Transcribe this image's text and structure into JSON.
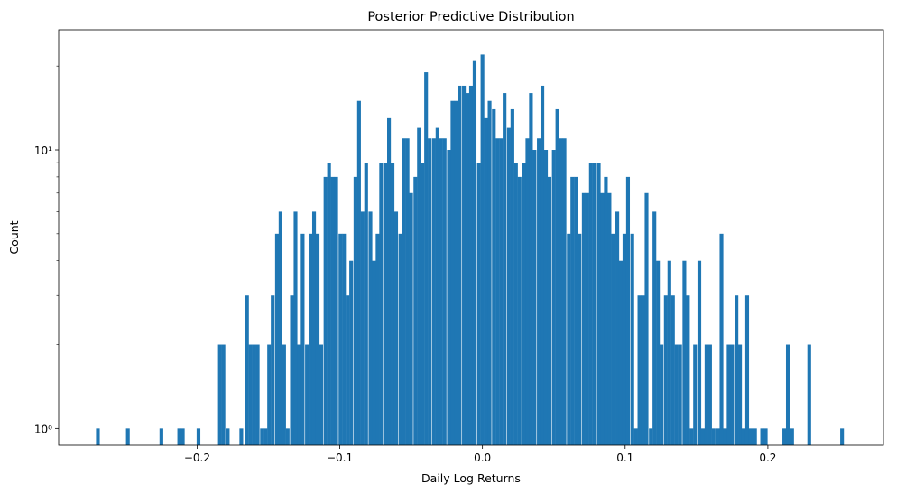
{
  "chart_data": {
    "type": "bar",
    "title": "Posterior Predictive Distribution",
    "xlabel": "Daily Log Returns",
    "ylabel": "Count",
    "yscale": "log",
    "xlim": [
      -0.297,
      0.281
    ],
    "ylim": [
      0.87,
      27
    ],
    "grid": false,
    "legend": "none",
    "bar_color": "#1f77b4",
    "x_ticks": [
      {
        "value": -0.2,
        "label": "−0.2"
      },
      {
        "value": -0.1,
        "label": "−0.1"
      },
      {
        "value": 0.0,
        "label": "0.0"
      },
      {
        "value": 0.1,
        "label": "0.1"
      },
      {
        "value": 0.2,
        "label": "0.2"
      }
    ],
    "y_ticks": [
      {
        "value": 1,
        "label": "10⁰"
      },
      {
        "value": 10,
        "label": "10¹"
      }
    ],
    "y_minor_ticks": [
      2,
      3,
      4,
      5,
      6,
      7,
      8,
      9,
      20
    ],
    "bin_width": 0.00262,
    "bins": [
      {
        "x": -0.2695,
        "count": 1
      },
      {
        "x": -0.2485,
        "count": 1
      },
      {
        "x": -0.225,
        "count": 1
      },
      {
        "x": -0.2125,
        "count": 1
      },
      {
        "x": -0.21,
        "count": 1
      },
      {
        "x": -0.199,
        "count": 1
      },
      {
        "x": -0.184,
        "count": 2
      },
      {
        "x": -0.1815,
        "count": 2
      },
      {
        "x": -0.1785,
        "count": 1
      },
      {
        "x": -0.169,
        "count": 1
      },
      {
        "x": -0.165,
        "count": 3
      },
      {
        "x": -0.1625,
        "count": 2
      },
      {
        "x": -0.16,
        "count": 2
      },
      {
        "x": -0.1575,
        "count": 2
      },
      {
        "x": -0.1545,
        "count": 1
      },
      {
        "x": -0.152,
        "count": 1
      },
      {
        "x": -0.1495,
        "count": 2
      },
      {
        "x": -0.147,
        "count": 3
      },
      {
        "x": -0.144,
        "count": 5
      },
      {
        "x": -0.1415,
        "count": 6
      },
      {
        "x": -0.139,
        "count": 2
      },
      {
        "x": -0.1365,
        "count": 1
      },
      {
        "x": -0.1335,
        "count": 3
      },
      {
        "x": -0.131,
        "count": 6
      },
      {
        "x": -0.1285,
        "count": 2
      },
      {
        "x": -0.126,
        "count": 5
      },
      {
        "x": -0.123,
        "count": 2
      },
      {
        "x": -0.1205,
        "count": 5
      },
      {
        "x": -0.118,
        "count": 6
      },
      {
        "x": -0.1155,
        "count": 5
      },
      {
        "x": -0.113,
        "count": 2
      },
      {
        "x": -0.11,
        "count": 8
      },
      {
        "x": -0.1075,
        "count": 9
      },
      {
        "x": -0.105,
        "count": 8
      },
      {
        "x": -0.1025,
        "count": 8
      },
      {
        "x": -0.0995,
        "count": 5
      },
      {
        "x": -0.097,
        "count": 5
      },
      {
        "x": -0.0945,
        "count": 3
      },
      {
        "x": -0.092,
        "count": 4
      },
      {
        "x": -0.089,
        "count": 8
      },
      {
        "x": -0.0865,
        "count": 15
      },
      {
        "x": -0.084,
        "count": 6
      },
      {
        "x": -0.0815,
        "count": 9
      },
      {
        "x": -0.0785,
        "count": 6
      },
      {
        "x": -0.076,
        "count": 4
      },
      {
        "x": -0.0735,
        "count": 5
      },
      {
        "x": -0.071,
        "count": 9
      },
      {
        "x": -0.068,
        "count": 9
      },
      {
        "x": -0.0655,
        "count": 13
      },
      {
        "x": -0.063,
        "count": 9
      },
      {
        "x": -0.0605,
        "count": 6
      },
      {
        "x": -0.0575,
        "count": 5
      },
      {
        "x": -0.055,
        "count": 11
      },
      {
        "x": -0.0525,
        "count": 11
      },
      {
        "x": -0.05,
        "count": 7
      },
      {
        "x": -0.047,
        "count": 8
      },
      {
        "x": -0.0445,
        "count": 12
      },
      {
        "x": -0.042,
        "count": 9
      },
      {
        "x": -0.0395,
        "count": 19
      },
      {
        "x": -0.037,
        "count": 11
      },
      {
        "x": -0.034,
        "count": 11
      },
      {
        "x": -0.0315,
        "count": 12
      },
      {
        "x": -0.029,
        "count": 11
      },
      {
        "x": -0.0265,
        "count": 11
      },
      {
        "x": -0.0235,
        "count": 10
      },
      {
        "x": -0.021,
        "count": 15
      },
      {
        "x": -0.0185,
        "count": 15
      },
      {
        "x": -0.016,
        "count": 17
      },
      {
        "x": -0.013,
        "count": 17
      },
      {
        "x": -0.0105,
        "count": 16
      },
      {
        "x": -0.008,
        "count": 17
      },
      {
        "x": -0.0055,
        "count": 21
      },
      {
        "x": -0.0025,
        "count": 9
      },
      {
        "x": 0.0,
        "count": 22
      },
      {
        "x": 0.0025,
        "count": 13
      },
      {
        "x": 0.005,
        "count": 15
      },
      {
        "x": 0.008,
        "count": 14
      },
      {
        "x": 0.0105,
        "count": 11
      },
      {
        "x": 0.013,
        "count": 11
      },
      {
        "x": 0.0155,
        "count": 16
      },
      {
        "x": 0.0185,
        "count": 12
      },
      {
        "x": 0.021,
        "count": 14
      },
      {
        "x": 0.0235,
        "count": 9
      },
      {
        "x": 0.026,
        "count": 8
      },
      {
        "x": 0.029,
        "count": 9
      },
      {
        "x": 0.0315,
        "count": 11
      },
      {
        "x": 0.034,
        "count": 16
      },
      {
        "x": 0.0365,
        "count": 10
      },
      {
        "x": 0.0395,
        "count": 11
      },
      {
        "x": 0.042,
        "count": 17
      },
      {
        "x": 0.0445,
        "count": 10
      },
      {
        "x": 0.047,
        "count": 8
      },
      {
        "x": 0.05,
        "count": 10
      },
      {
        "x": 0.0525,
        "count": 14
      },
      {
        "x": 0.055,
        "count": 11
      },
      {
        "x": 0.0575,
        "count": 11
      },
      {
        "x": 0.0605,
        "count": 5
      },
      {
        "x": 0.063,
        "count": 8
      },
      {
        "x": 0.0655,
        "count": 8
      },
      {
        "x": 0.068,
        "count": 5
      },
      {
        "x": 0.071,
        "count": 7
      },
      {
        "x": 0.0735,
        "count": 7
      },
      {
        "x": 0.076,
        "count": 9
      },
      {
        "x": 0.0785,
        "count": 9
      },
      {
        "x": 0.0815,
        "count": 9
      },
      {
        "x": 0.084,
        "count": 7
      },
      {
        "x": 0.0865,
        "count": 8
      },
      {
        "x": 0.089,
        "count": 7
      },
      {
        "x": 0.0915,
        "count": 5
      },
      {
        "x": 0.0945,
        "count": 6
      },
      {
        "x": 0.097,
        "count": 4
      },
      {
        "x": 0.0995,
        "count": 5
      },
      {
        "x": 0.102,
        "count": 8
      },
      {
        "x": 0.105,
        "count": 5
      },
      {
        "x": 0.1075,
        "count": 1
      },
      {
        "x": 0.11,
        "count": 3
      },
      {
        "x": 0.1125,
        "count": 3
      },
      {
        "x": 0.115,
        "count": 7
      },
      {
        "x": 0.118,
        "count": 1
      },
      {
        "x": 0.1205,
        "count": 6
      },
      {
        "x": 0.123,
        "count": 4
      },
      {
        "x": 0.1255,
        "count": 2
      },
      {
        "x": 0.1285,
        "count": 3
      },
      {
        "x": 0.131,
        "count": 4
      },
      {
        "x": 0.1335,
        "count": 3
      },
      {
        "x": 0.136,
        "count": 2
      },
      {
        "x": 0.1385,
        "count": 2
      },
      {
        "x": 0.1415,
        "count": 4
      },
      {
        "x": 0.144,
        "count": 3
      },
      {
        "x": 0.1465,
        "count": 1
      },
      {
        "x": 0.149,
        "count": 2
      },
      {
        "x": 0.152,
        "count": 4
      },
      {
        "x": 0.1545,
        "count": 1
      },
      {
        "x": 0.157,
        "count": 2
      },
      {
        "x": 0.1595,
        "count": 2
      },
      {
        "x": 0.162,
        "count": 1
      },
      {
        "x": 0.165,
        "count": 1
      },
      {
        "x": 0.1675,
        "count": 5
      },
      {
        "x": 0.17,
        "count": 1
      },
      {
        "x": 0.1725,
        "count": 2
      },
      {
        "x": 0.175,
        "count": 2
      },
      {
        "x": 0.178,
        "count": 3
      },
      {
        "x": 0.1805,
        "count": 2
      },
      {
        "x": 0.183,
        "count": 1
      },
      {
        "x": 0.1855,
        "count": 3
      },
      {
        "x": 0.188,
        "count": 1
      },
      {
        "x": 0.191,
        "count": 1
      },
      {
        "x": 0.196,
        "count": 1
      },
      {
        "x": 0.1985,
        "count": 1
      },
      {
        "x": 0.2115,
        "count": 1
      },
      {
        "x": 0.214,
        "count": 2
      },
      {
        "x": 0.217,
        "count": 1
      },
      {
        "x": 0.229,
        "count": 2
      },
      {
        "x": 0.252,
        "count": 1
      }
    ]
  }
}
